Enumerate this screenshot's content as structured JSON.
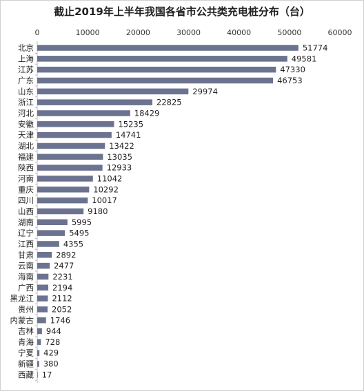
{
  "chart_data": {
    "type": "bar",
    "orientation": "horizontal",
    "title": "截止2019年上半年我国各省市公共类充电桩分布（台）",
    "xlim": [
      0,
      60000
    ],
    "xticks": [
      0,
      10000,
      20000,
      30000,
      40000,
      50000,
      60000
    ],
    "x_axis_position": "top",
    "grid": false,
    "bar_color": "#6b7390",
    "categories": [
      "北京",
      "上海",
      "江苏",
      "广东",
      "山东",
      "浙江",
      "河北",
      "安徽",
      "天津",
      "湖北",
      "福建",
      "陕西",
      "河南",
      "重庆",
      "四川",
      "山西",
      "湖南",
      "辽宁",
      "江西",
      "甘肃",
      "云南",
      "海南",
      "广西",
      "黑龙江",
      "贵州",
      "内蒙古",
      "吉林",
      "青海",
      "宁夏",
      "新疆",
      "西藏"
    ],
    "values": [
      51774,
      49581,
      47330,
      46753,
      29974,
      22825,
      18429,
      15235,
      14741,
      13422,
      13035,
      12933,
      11042,
      10292,
      10017,
      9180,
      5995,
      5495,
      4355,
      2892,
      2477,
      2231,
      2194,
      2112,
      2052,
      1746,
      944,
      728,
      429,
      380,
      17
    ]
  }
}
